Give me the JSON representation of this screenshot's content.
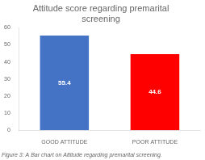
{
  "chart_data": {
    "type": "bar",
    "title": "Attitude score regarding premarital\nscreening",
    "caption": "Figure 3: A Bar chart on Attitude regarding premarital screening.",
    "categories": [
      "GOOD ATTITUDE",
      "POOR ATTITUDE"
    ],
    "values": [
      55.4,
      44.6
    ],
    "colors": [
      "#4472C4",
      "#FF0000"
    ],
    "ylim": [
      0,
      60
    ],
    "yticks": [
      0,
      10,
      20,
      30,
      40,
      50,
      60
    ],
    "grid": false,
    "data_labels": true
  }
}
